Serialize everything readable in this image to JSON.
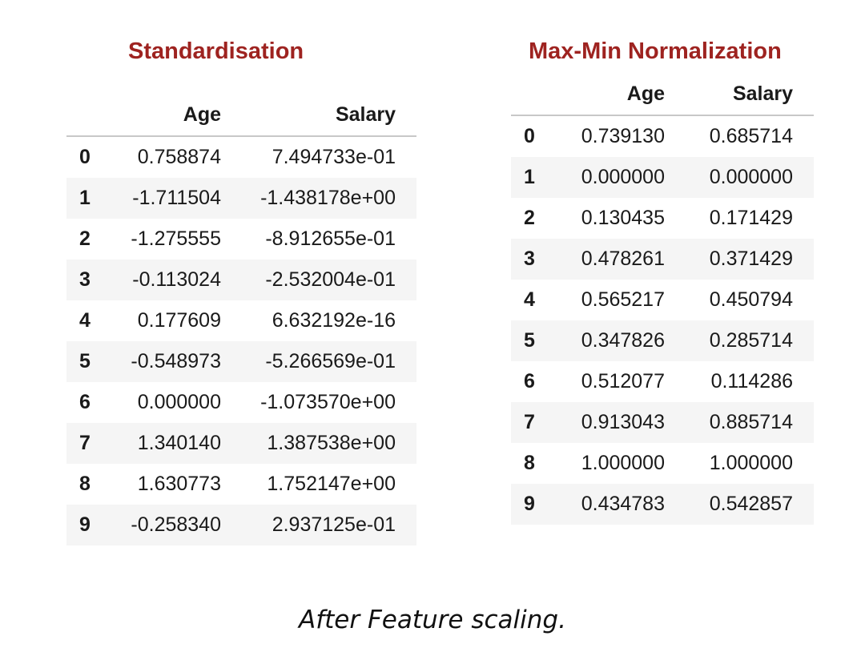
{
  "standardisation": {
    "title": "Standardisation",
    "columns": [
      "",
      "Age",
      "Salary"
    ],
    "rows": [
      [
        "0",
        "0.758874",
        "7.494733e-01"
      ],
      [
        "1",
        "-1.711504",
        "-1.438178e+00"
      ],
      [
        "2",
        "-1.275555",
        "-8.912655e-01"
      ],
      [
        "3",
        "-0.113024",
        "-2.532004e-01"
      ],
      [
        "4",
        "0.177609",
        "6.632192e-16"
      ],
      [
        "5",
        "-0.548973",
        "-5.266569e-01"
      ],
      [
        "6",
        "0.000000",
        "-1.073570e+00"
      ],
      [
        "7",
        "1.340140",
        "1.387538e+00"
      ],
      [
        "8",
        "1.630773",
        "1.752147e+00"
      ],
      [
        "9",
        "-0.258340",
        "2.937125e-01"
      ]
    ]
  },
  "normalization": {
    "title": "Max-Min Normalization",
    "columns": [
      "",
      "Age",
      "Salary"
    ],
    "rows": [
      [
        "0",
        "0.739130",
        "0.685714"
      ],
      [
        "1",
        "0.000000",
        "0.000000"
      ],
      [
        "2",
        "0.130435",
        "0.171429"
      ],
      [
        "3",
        "0.478261",
        "0.371429"
      ],
      [
        "4",
        "0.565217",
        "0.450794"
      ],
      [
        "5",
        "0.347826",
        "0.285714"
      ],
      [
        "6",
        "0.512077",
        "0.114286"
      ],
      [
        "7",
        "0.913043",
        "0.885714"
      ],
      [
        "8",
        "1.000000",
        "1.000000"
      ],
      [
        "9",
        "0.434783",
        "0.542857"
      ]
    ]
  },
  "caption": "After Feature scaling.",
  "colors": {
    "title": "#9e2320",
    "stripe": "#f5f5f5",
    "rule": "#c8c8c8"
  }
}
